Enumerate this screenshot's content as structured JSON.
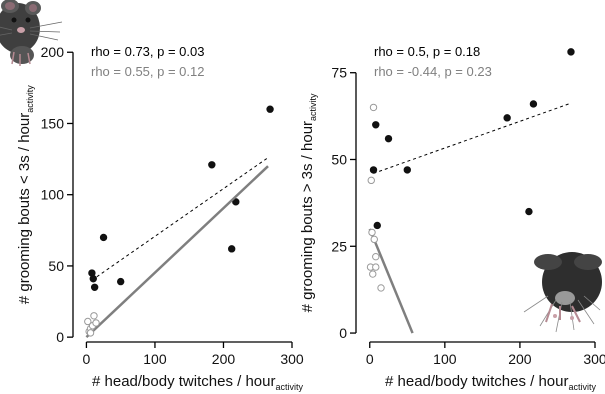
{
  "chart_data": [
    {
      "type": "scatter",
      "xlabel": "# head/body twitches / hour",
      "xlabel_sub": "activity",
      "ylabel": "# grooming bouts < 3s / hour",
      "ylabel_sub": "activity",
      "xlim": [
        -5,
        300
      ],
      "ylim": [
        -2,
        210
      ],
      "xticks": [
        "0",
        "100",
        "200",
        "300"
      ],
      "yticks": [
        "0",
        "50",
        "100",
        "150",
        "200"
      ],
      "ytick_values": [
        0,
        50,
        100,
        150,
        200
      ],
      "annotations": [
        {
          "text": "rho = 0.73, p = 0.03",
          "color": "#000000"
        },
        {
          "text": "rho = 0.55, p = 0.12",
          "color": "#808080"
        }
      ],
      "series": [
        {
          "marker": "filled",
          "color": "#111111",
          "trend": "dashed",
          "points": [
            [
              8,
              45
            ],
            [
              10,
              41
            ],
            [
              12,
              35
            ],
            [
              25,
              70
            ],
            [
              50,
              39
            ],
            [
              183,
              121
            ],
            [
              212,
              62
            ],
            [
              218,
              95
            ],
            [
              268,
              160
            ]
          ],
          "fit": [
            [
              8,
              40
            ],
            [
              265,
              126
            ]
          ]
        },
        {
          "marker": "open",
          "color": "#9a9a9a",
          "trend": "solid",
          "points": [
            [
              2,
              11
            ],
            [
              4,
              4
            ],
            [
              6,
              6
            ],
            [
              9,
              8
            ],
            [
              11,
              15
            ],
            [
              14,
              10
            ],
            [
              6,
              3
            ]
          ],
          "fit": [
            [
              0,
              0
            ],
            [
              265,
              120
            ]
          ]
        }
      ],
      "decoration": "mouse-cartoon-top-left"
    },
    {
      "type": "scatter",
      "xlabel": "# head/body twitches / hour",
      "xlabel_sub": "activity",
      "ylabel": "# grooming bouts > 3s / hour",
      "ylabel_sub": "activity",
      "xlim": [
        -5,
        300
      ],
      "ylim": [
        -2,
        85
      ],
      "xticks": [
        "0",
        "100",
        "200",
        "300"
      ],
      "yticks": [
        "0",
        "25",
        "50",
        "75"
      ],
      "ytick_values": [
        0,
        25,
        50,
        75
      ],
      "annotations": [
        {
          "text": "rho = 0.5, p = 0.18",
          "color": "#000000"
        },
        {
          "text": "rho = -0.44, p = 0.23",
          "color": "#808080"
        }
      ],
      "series": [
        {
          "marker": "filled",
          "color": "#111111",
          "trend": "dashed",
          "points": [
            [
              5,
              47
            ],
            [
              8,
              60
            ],
            [
              10,
              31
            ],
            [
              25,
              56
            ],
            [
              50,
              47
            ],
            [
              183,
              62
            ],
            [
              212,
              35
            ],
            [
              218,
              66
            ],
            [
              268,
              81
            ]
          ],
          "fit": [
            [
              5,
              46
            ],
            [
              265,
              66
            ]
          ]
        },
        {
          "marker": "open",
          "color": "#9a9a9a",
          "trend": "solid",
          "points": [
            [
              2,
              44
            ],
            [
              5,
              65
            ],
            [
              3,
              29
            ],
            [
              6,
              27
            ],
            [
              1,
              19
            ],
            [
              4,
              17
            ],
            [
              8,
              19
            ],
            [
              15,
              13
            ],
            [
              8,
              22
            ]
          ],
          "fit": [
            [
              0,
              30
            ],
            [
              57,
              0
            ]
          ]
        }
      ],
      "decoration": "mouse-cartoon-bottom-right"
    }
  ]
}
